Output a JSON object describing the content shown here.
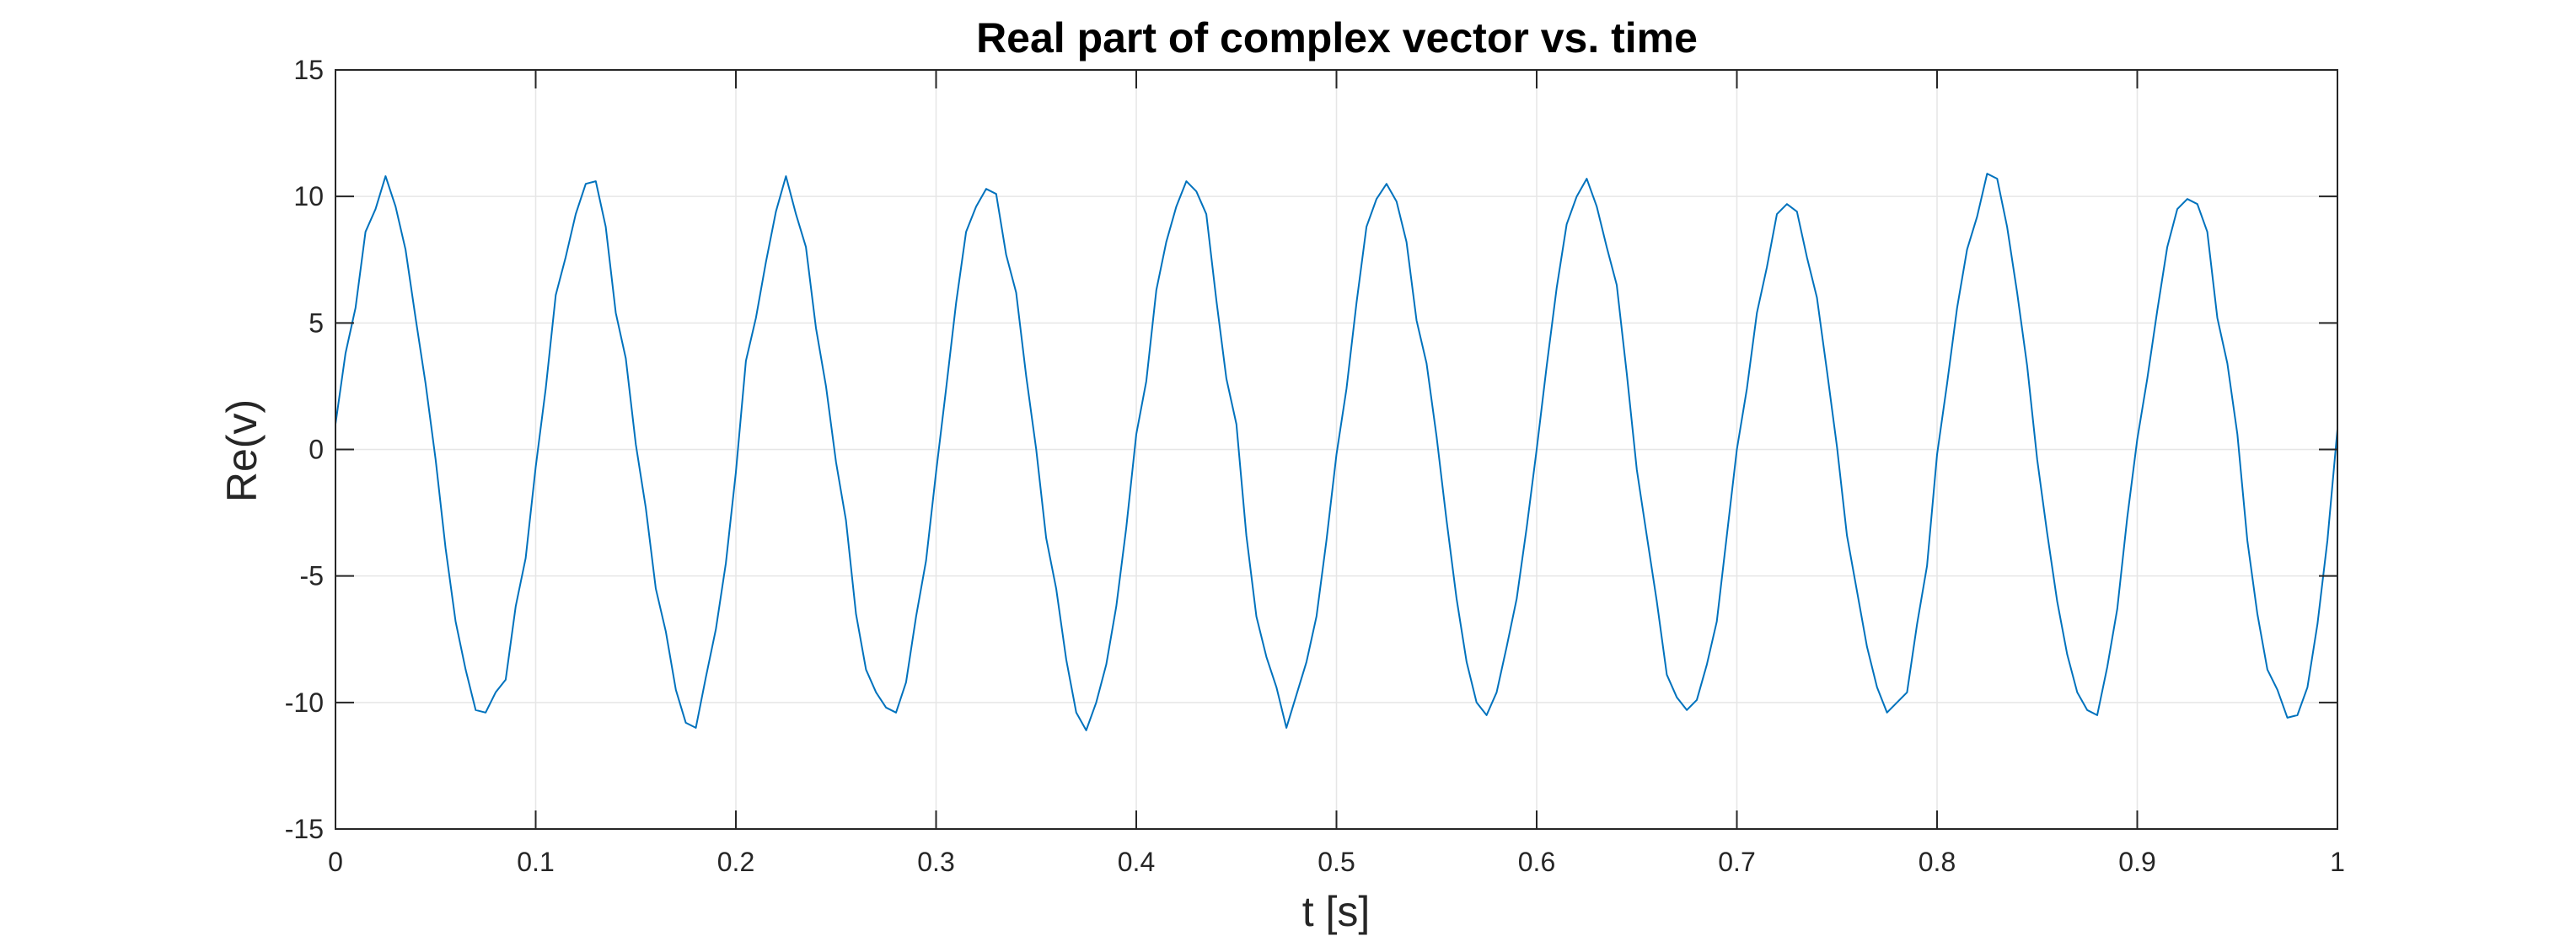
{
  "chart_data": {
    "type": "line",
    "title": "Real part of complex vector vs. time",
    "xlabel": "t [s]",
    "ylabel": "Re(v)",
    "xlim": [
      0,
      1
    ],
    "ylim": [
      -15,
      15
    ],
    "grid": true,
    "legend": "none",
    "x_ticks": [
      0,
      0.1,
      0.2,
      0.3,
      0.4,
      0.5,
      0.6,
      0.7,
      0.8,
      0.9,
      1
    ],
    "x_tick_labels": [
      "0",
      "0.1",
      "0.2",
      "0.3",
      "0.4",
      "0.5",
      "0.6",
      "0.7",
      "0.8",
      "0.9",
      "1"
    ],
    "y_ticks": [
      15,
      10,
      5,
      0,
      -5,
      -10,
      -15
    ],
    "y_tick_labels": [
      "15",
      "10",
      "5",
      "0",
      "-5",
      "-10",
      "-15"
    ],
    "colors": {
      "line": "#0072BD",
      "grid": "#e6e6e6",
      "axes": "#262626"
    },
    "series": [
      {
        "x": [
          0.0,
          0.005,
          0.01,
          0.015,
          0.02,
          0.025,
          0.03,
          0.035,
          0.04,
          0.045,
          0.05,
          0.055,
          0.06,
          0.065,
          0.07,
          0.075,
          0.08,
          0.085,
          0.09,
          0.095,
          0.1,
          0.105,
          0.11,
          0.115,
          0.12,
          0.125,
          0.13,
          0.135,
          0.14,
          0.145,
          0.15,
          0.155,
          0.16,
          0.165,
          0.17,
          0.175,
          0.18,
          0.185,
          0.19,
          0.195,
          0.2,
          0.205,
          0.21,
          0.215,
          0.22,
          0.225,
          0.23,
          0.235,
          0.24,
          0.245,
          0.25,
          0.255,
          0.26,
          0.265,
          0.27,
          0.275,
          0.28,
          0.285,
          0.29,
          0.295,
          0.3,
          0.305,
          0.31,
          0.315,
          0.32,
          0.325,
          0.33,
          0.335,
          0.34,
          0.345,
          0.35,
          0.355,
          0.36,
          0.365,
          0.37,
          0.375,
          0.38,
          0.385,
          0.39,
          0.395,
          0.4,
          0.405,
          0.41,
          0.415,
          0.42,
          0.425,
          0.43,
          0.435,
          0.44,
          0.445,
          0.45,
          0.455,
          0.46,
          0.465,
          0.47,
          0.475,
          0.48,
          0.485,
          0.49,
          0.495,
          0.5,
          0.505,
          0.51,
          0.515,
          0.52,
          0.525,
          0.53,
          0.535,
          0.54,
          0.545,
          0.55,
          0.555,
          0.56,
          0.565,
          0.57,
          0.575,
          0.58,
          0.585,
          0.59,
          0.595,
          0.6,
          0.605,
          0.61,
          0.615,
          0.62,
          0.625,
          0.63,
          0.635,
          0.64,
          0.645,
          0.65,
          0.655,
          0.66,
          0.665,
          0.67,
          0.675,
          0.68,
          0.685,
          0.69,
          0.695,
          0.7,
          0.705,
          0.71,
          0.715,
          0.72,
          0.725,
          0.73,
          0.735,
          0.74,
          0.745,
          0.75,
          0.755,
          0.76,
          0.765,
          0.77,
          0.775,
          0.78,
          0.785,
          0.79,
          0.795,
          0.8,
          0.805,
          0.81,
          0.815,
          0.82,
          0.825,
          0.83,
          0.835,
          0.84,
          0.845,
          0.85,
          0.855,
          0.86,
          0.865,
          0.87,
          0.875,
          0.88,
          0.885,
          0.89,
          0.895,
          0.9,
          0.905,
          0.91,
          0.915,
          0.92,
          0.925,
          0.93,
          0.935,
          0.94,
          0.945,
          0.95,
          0.955,
          0.96,
          0.965,
          0.97,
          0.975,
          0.98,
          0.985,
          0.99,
          0.995,
          1.0
        ],
        "y": [
          1.0,
          3.8,
          5.6,
          8.6,
          9.5,
          10.8,
          9.6,
          7.9,
          5.2,
          2.6,
          -0.4,
          -3.9,
          -6.8,
          -8.7,
          -10.3,
          -10.4,
          -9.6,
          -9.1,
          -6.2,
          -4.3,
          -0.7,
          2.4,
          6.1,
          7.6,
          9.3,
          10.5,
          10.6,
          8.8,
          5.4,
          3.6,
          0.2,
          -2.3,
          -5.5,
          -7.2,
          -9.5,
          -10.8,
          -11.0,
          -9.0,
          -7.1,
          -4.5,
          -0.9,
          3.5,
          5.2,
          7.4,
          9.4,
          10.8,
          9.3,
          8.0,
          4.8,
          2.5,
          -0.5,
          -2.8,
          -6.5,
          -8.7,
          -9.6,
          -10.2,
          -10.4,
          -9.2,
          -6.6,
          -4.4,
          -0.9,
          2.4,
          5.8,
          8.6,
          9.6,
          10.3,
          10.1,
          7.7,
          6.2,
          2.9,
          0.0,
          -3.5,
          -5.5,
          -8.3,
          -10.4,
          -11.1,
          -10.0,
          -8.5,
          -6.2,
          -3.1,
          0.6,
          2.7,
          6.3,
          8.2,
          9.6,
          10.6,
          10.2,
          9.3,
          5.9,
          2.8,
          1.0,
          -3.4,
          -6.6,
          -8.2,
          -9.4,
          -11.0,
          -9.7,
          -8.4,
          -6.6,
          -3.6,
          -0.2,
          2.4,
          5.8,
          8.8,
          9.9,
          10.5,
          9.8,
          8.2,
          5.1,
          3.4,
          0.5,
          -2.8,
          -5.9,
          -8.4,
          -10.0,
          -10.5,
          -9.6,
          -7.8,
          -5.9,
          -3.1,
          0.0,
          3.3,
          6.4,
          8.9,
          10.0,
          10.7,
          9.6,
          8.0,
          6.5,
          3.0,
          -0.8,
          -3.4,
          -6.0,
          -8.9,
          -9.8,
          -10.3,
          -9.9,
          -8.5,
          -6.8,
          -3.4,
          0.0,
          2.4,
          5.4,
          7.2,
          9.3,
          9.7,
          9.4,
          7.6,
          6.0,
          3.1,
          0.1,
          -3.4,
          -5.6,
          -7.8,
          -9.4,
          -10.4,
          -10.0,
          -9.6,
          -6.9,
          -4.6,
          -0.2,
          2.6,
          5.6,
          7.9,
          9.2,
          10.9,
          10.7,
          8.8,
          6.2,
          3.3,
          -0.4,
          -3.3,
          -6.0,
          -8.1,
          -9.6,
          -10.3,
          -10.5,
          -8.6,
          -6.3,
          -2.7,
          0.4,
          2.8,
          5.5,
          8.0,
          9.5,
          9.9,
          9.7,
          8.6,
          5.2,
          3.4,
          0.6,
          -3.6,
          -6.5,
          -8.7,
          -9.5,
          -10.6,
          -10.5,
          -9.4,
          -6.9,
          -3.6,
          0.8
        ]
      }
    ]
  }
}
